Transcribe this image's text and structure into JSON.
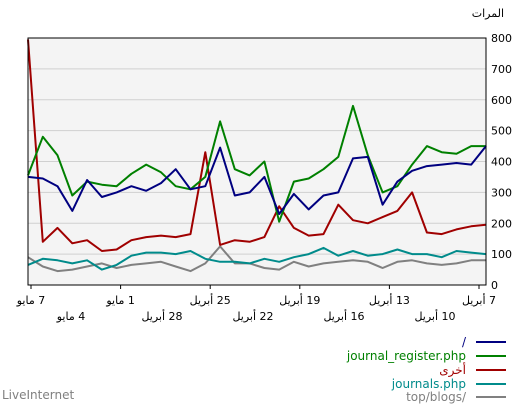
{
  "chart_data": {
    "type": "line",
    "unit_label": "المرات",
    "ylim": [
      0,
      800
    ],
    "yticks": [
      0,
      100,
      200,
      300,
      400,
      500,
      600,
      700,
      800
    ],
    "xticks_top": [
      "7 مايو",
      "1 مايو",
      "25 أبريل",
      "19 أبريل",
      "13 أبريل",
      "7 أبريل"
    ],
    "xticks_bottom": [
      "4 مايو",
      "28 أبريل",
      "22 أبريل",
      "16 أبريل",
      "10 أبريل"
    ],
    "grid": true,
    "legend_position": "bottom-right",
    "series": [
      {
        "name": "/",
        "color": "#000080",
        "values": [
          350,
          345,
          320,
          240,
          340,
          285,
          300,
          320,
          305,
          330,
          375,
          310,
          320,
          445,
          290,
          300,
          350,
          230,
          295,
          245,
          290,
          300,
          410,
          415,
          260,
          335,
          370,
          385,
          390,
          395,
          390,
          450
        ]
      },
      {
        "name": "journal_register.php",
        "color": "#008000",
        "values": [
          355,
          480,
          420,
          290,
          335,
          325,
          320,
          360,
          390,
          365,
          320,
          310,
          350,
          530,
          375,
          355,
          400,
          205,
          335,
          345,
          375,
          415,
          580,
          420,
          300,
          320,
          390,
          450,
          430,
          425,
          450,
          450
        ]
      },
      {
        "name": "أخرى",
        "color": "#a00000",
        "values": [
          795,
          140,
          185,
          135,
          145,
          110,
          115,
          145,
          155,
          160,
          155,
          165,
          430,
          130,
          145,
          140,
          155,
          255,
          185,
          160,
          165,
          260,
          210,
          200,
          220,
          240,
          300,
          170,
          165,
          180,
          190,
          195
        ]
      },
      {
        "name": "journals.php",
        "color": "#008b8b",
        "values": [
          65,
          85,
          80,
          70,
          80,
          50,
          65,
          95,
          105,
          105,
          100,
          110,
          85,
          75,
          75,
          70,
          85,
          75,
          90,
          100,
          120,
          95,
          110,
          95,
          100,
          115,
          100,
          100,
          90,
          110,
          105,
          100
        ]
      },
      {
        "name": "top/blogs/",
        "color": "#808080",
        "values": [
          90,
          60,
          45,
          50,
          60,
          70,
          55,
          65,
          70,
          75,
          60,
          45,
          70,
          125,
          70,
          70,
          55,
          50,
          75,
          60,
          70,
          75,
          80,
          75,
          55,
          75,
          80,
          70,
          65,
          70,
          80,
          80
        ]
      }
    ]
  },
  "footer": {
    "brand": "LiveInternet"
  }
}
